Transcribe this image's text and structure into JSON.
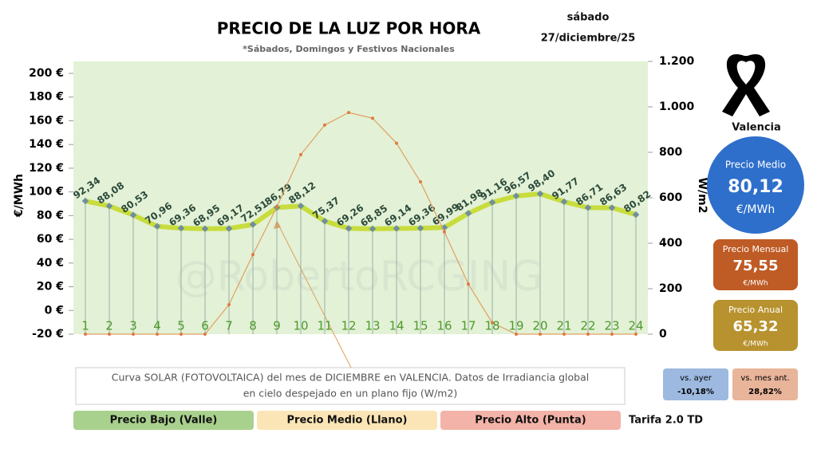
{
  "chart_data": {
    "type": "line",
    "title": "PRECIO DE LA LUZ POR HORA",
    "subtitle": "*Sábados, Domingos y Festivos Nacionales",
    "watermark": "@RobertoRCGING",
    "y_label": "€/MWh",
    "y2_label": "W/m2",
    "categories": [
      "1",
      "2",
      "3",
      "4",
      "5",
      "6",
      "7",
      "8",
      "9",
      "10",
      "11",
      "12",
      "13",
      "14",
      "15",
      "16",
      "17",
      "18",
      "19",
      "20",
      "21",
      "22",
      "23",
      "24"
    ],
    "series": [
      {
        "name": "Precio",
        "color": "#c8dc3c",
        "values": [
          92.34,
          88.08,
          80.53,
          70.96,
          69.36,
          68.95,
          69.17,
          72.51,
          86.79,
          88.12,
          75.37,
          69.26,
          68.85,
          69.14,
          69.36,
          69.99,
          81.98,
          91.16,
          96.57,
          98.4,
          91.77,
          86.71,
          86.63,
          80.82
        ],
        "value_labels": [
          "92,34",
          "88,08",
          "80,53",
          "70,96",
          "69,36",
          "68,95",
          "69,17",
          "72,51",
          "86,79",
          "88,12",
          "75,37",
          "69,26",
          "68,85",
          "69,14",
          "69,36",
          "69,99",
          "81,98",
          "91,16",
          "96,57",
          "98,40",
          "91,77",
          "86,71",
          "86,63",
          "80,82"
        ]
      },
      {
        "name": "Solar",
        "color": "#e0a060",
        "axis": "y2",
        "values": [
          0,
          0,
          0,
          0,
          0,
          0,
          130,
          350,
          560,
          790,
          920,
          975,
          950,
          840,
          670,
          450,
          220,
          50,
          0,
          0,
          0,
          0,
          0,
          0
        ]
      }
    ],
    "ylim": [
      -20,
      200
    ],
    "yticks": [
      {
        "value": -20,
        "label": "-20 €"
      },
      {
        "value": 0,
        "label": "0 €"
      },
      {
        "value": 20,
        "label": "20 €"
      },
      {
        "value": 40,
        "label": "40 €"
      },
      {
        "value": 60,
        "label": "60 €"
      },
      {
        "value": 80,
        "label": "80 €"
      },
      {
        "value": 100,
        "label": "100 €"
      },
      {
        "value": 120,
        "label": "120 €"
      },
      {
        "value": 140,
        "label": "140 €"
      },
      {
        "value": 160,
        "label": "160 €"
      },
      {
        "value": 180,
        "label": "180 €"
      },
      {
        "value": 200,
        "label": "200 €"
      }
    ],
    "y2lim": [
      0,
      1200
    ],
    "y2ticks": [
      0,
      200,
      400,
      600,
      800,
      {
        "value": 1000,
        "label": "1.000"
      },
      {
        "value": 1200,
        "label": "1.200"
      }
    ],
    "annotation": [
      "Curva SOLAR (FOTOVOLTAICA) del mes de DICIEMBRE en VALENCIA. Datos de Irradiancia global",
      "en cielo despejado en un plano fijo (W/m2)"
    ],
    "legend": [
      "Precio Bajo (Valle)",
      "Precio Medio (Llano)",
      "Precio Alto (Punta)"
    ],
    "tariff": "Tarifa 2.0 TD"
  },
  "panel": {
    "weekday": "sábado",
    "date": "27/diciembre/25",
    "city": "Valencia",
    "medio": {
      "label": "Precio Medio",
      "value": "80,12",
      "unit": "€/MWh"
    },
    "mensual": {
      "label": "Precio Mensual",
      "value": "75,55",
      "unit": "€/MWh"
    },
    "anual": {
      "label": "Precio Anual",
      "value": "65,32",
      "unit": "€/MWh"
    },
    "ayer": {
      "label": "vs. ayer",
      "value": "-10,18%"
    },
    "mes": {
      "label": "vs. mes ant.",
      "value": "28,82%"
    }
  }
}
